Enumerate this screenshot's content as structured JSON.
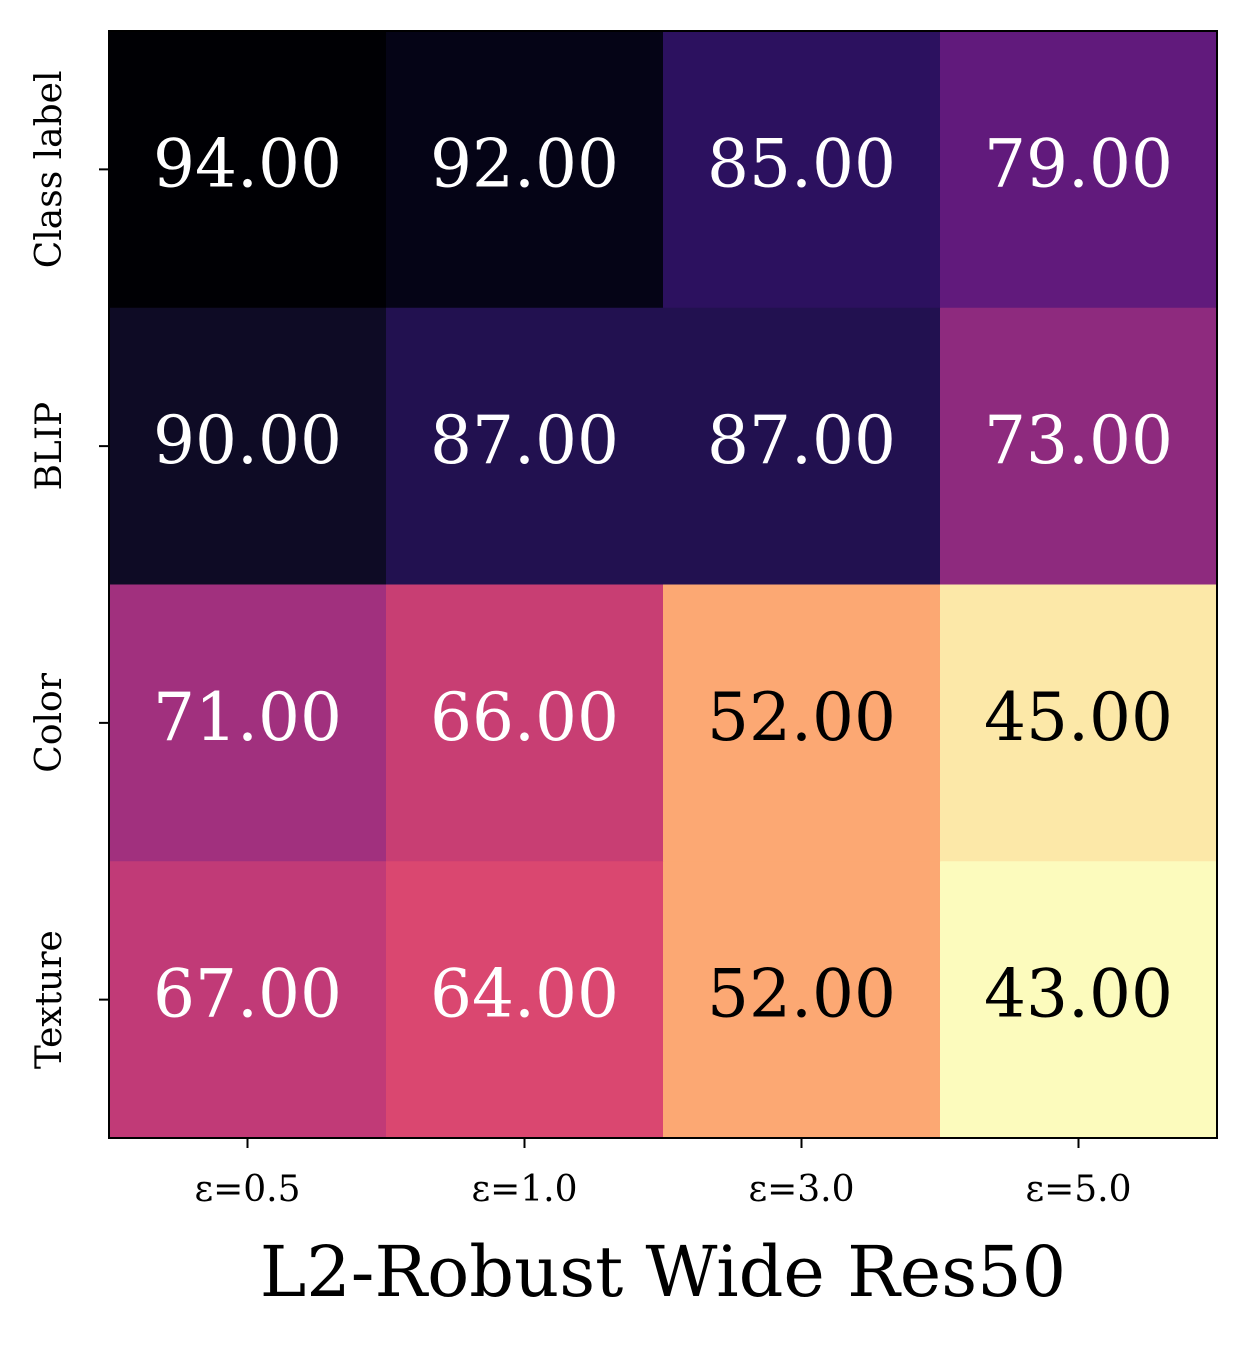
{
  "chart_data": {
    "type": "heatmap",
    "xlabel": "L2-Robust Wide Res50",
    "x_categories": [
      "ε=0.5",
      "ε=1.0",
      "ε=3.0",
      "ε=5.0"
    ],
    "y_categories": [
      "Class label",
      "BLIP",
      "Color",
      "Texture"
    ],
    "values": [
      [
        94,
        92,
        85,
        79
      ],
      [
        90,
        87,
        87,
        73
      ],
      [
        71,
        66,
        52,
        45
      ],
      [
        67,
        64,
        52,
        43
      ]
    ],
    "value_labels": [
      [
        "94.00",
        "92.00",
        "85.00",
        "79.00"
      ],
      [
        "90.00",
        "87.00",
        "87.00",
        "73.00"
      ],
      [
        "71.00",
        "66.00",
        "52.00",
        "45.00"
      ],
      [
        "67.00",
        "64.00",
        "52.00",
        "43.00"
      ]
    ],
    "colors": [
      [
        "#000004",
        "#050416",
        "#2c115f",
        "#611a7c"
      ],
      [
        "#0e0b25",
        "#221150",
        "#221150",
        "#8e2a7e"
      ],
      [
        "#a1307e",
        "#c83e73",
        "#fca873",
        "#fce8a8"
      ],
      [
        "#c13a77",
        "#da4770",
        "#fca873",
        "#fcfbbd"
      ]
    ]
  }
}
